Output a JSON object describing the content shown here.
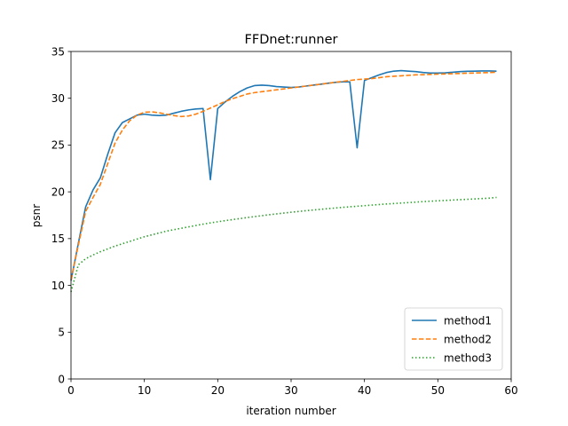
{
  "chart_data": {
    "type": "line",
    "title": "FFDnet:runner",
    "xlabel": "iteration number",
    "ylabel": "psnr",
    "xlim": [
      0,
      60
    ],
    "ylim": [
      0,
      35
    ],
    "xticks": [
      0,
      10,
      20,
      30,
      40,
      50,
      60
    ],
    "yticks": [
      0,
      5,
      10,
      15,
      20,
      25,
      30,
      35
    ],
    "grid": false,
    "legend_position": "lower-right",
    "x": [
      0,
      1,
      2,
      3,
      4,
      5,
      6,
      7,
      8,
      9,
      10,
      11,
      12,
      13,
      14,
      15,
      16,
      17,
      18,
      19,
      20,
      21,
      22,
      23,
      24,
      25,
      26,
      27,
      28,
      29,
      30,
      31,
      32,
      33,
      34,
      35,
      36,
      37,
      38,
      39,
      40,
      41,
      42,
      43,
      44,
      45,
      46,
      47,
      48,
      49,
      50,
      51,
      52,
      53,
      54,
      55,
      56,
      57,
      58
    ],
    "series": [
      {
        "name": "method1",
        "color": "#1f77b4",
        "style": "solid",
        "values": [
          10.5,
          14.5,
          18.4,
          20.2,
          21.5,
          24.0,
          26.3,
          27.4,
          27.8,
          28.2,
          28.3,
          28.2,
          28.15,
          28.2,
          28.4,
          28.6,
          28.75,
          28.85,
          28.9,
          21.3,
          28.9,
          29.6,
          30.2,
          30.7,
          31.1,
          31.35,
          31.4,
          31.35,
          31.25,
          31.2,
          31.15,
          31.2,
          31.3,
          31.4,
          31.5,
          31.6,
          31.7,
          31.75,
          31.75,
          24.7,
          31.9,
          32.2,
          32.5,
          32.75,
          32.9,
          32.95,
          32.9,
          32.85,
          32.75,
          32.7,
          32.7,
          32.72,
          32.78,
          32.85,
          32.88,
          32.9,
          32.92,
          32.92,
          32.9
        ]
      },
      {
        "name": "method2",
        "color": "#ff7f0e",
        "style": "dashed",
        "values": [
          10.6,
          14.3,
          17.9,
          19.4,
          20.8,
          23.0,
          25.2,
          26.6,
          27.6,
          28.2,
          28.5,
          28.55,
          28.45,
          28.3,
          28.15,
          28.05,
          28.1,
          28.3,
          28.6,
          28.95,
          29.3,
          29.65,
          29.95,
          30.2,
          30.45,
          30.6,
          30.7,
          30.8,
          30.9,
          31.0,
          31.1,
          31.2,
          31.3,
          31.4,
          31.5,
          31.6,
          31.7,
          31.8,
          31.9,
          32.0,
          32.05,
          32.1,
          32.2,
          32.3,
          32.35,
          32.4,
          32.45,
          32.5,
          32.52,
          32.55,
          32.58,
          32.6,
          32.62,
          32.65,
          32.68,
          32.7,
          32.72,
          32.75,
          32.78
        ]
      },
      {
        "name": "method3",
        "color": "#2ca02c",
        "style": "dotted",
        "values": [
          9.3,
          12.2,
          12.85,
          13.25,
          13.6,
          13.9,
          14.2,
          14.45,
          14.7,
          14.95,
          15.2,
          15.4,
          15.6,
          15.8,
          15.95,
          16.1,
          16.25,
          16.4,
          16.55,
          16.68,
          16.8,
          16.92,
          17.03,
          17.14,
          17.25,
          17.35,
          17.45,
          17.55,
          17.64,
          17.73,
          17.82,
          17.9,
          17.98,
          18.06,
          18.13,
          18.2,
          18.27,
          18.34,
          18.4,
          18.46,
          18.52,
          18.58,
          18.64,
          18.7,
          18.75,
          18.8,
          18.85,
          18.9,
          18.95,
          19.0,
          19.04,
          19.08,
          19.12,
          19.16,
          19.2,
          19.24,
          19.28,
          19.32,
          19.4
        ]
      }
    ]
  }
}
